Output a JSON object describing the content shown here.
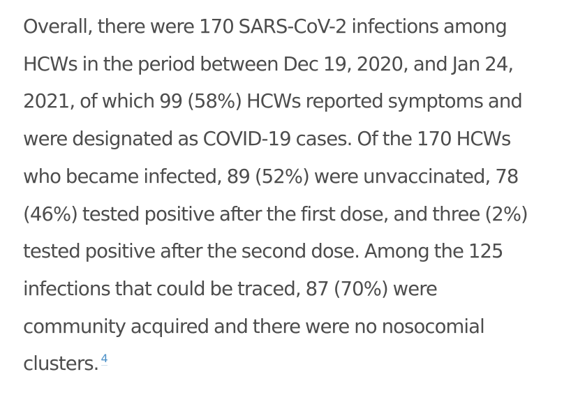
{
  "paragraph": {
    "lines": [
      "Overall, there were 170 SARS-CoV-2 infections among",
      "HCWs in the period between Dec 19, 2020, and Jan 24,",
      "2021, of which 99 (58%) HCWs reported symptoms and",
      "were designated as COVID-19 cases. Of the 170 HCWs",
      "who became infected, 89 (52%) were unvaccinated, 78",
      "(46%) tested positive after the first dose, and three (2%)",
      "tested positive after the second dose. Among the 125",
      "infections that could be traced, 87 (70%) were",
      "community acquired and there were no nosocomial",
      "clusters."
    ],
    "reference_number": "4"
  },
  "colors": {
    "text": "#4d4d4d",
    "link": "#4a8fc7",
    "background": "#ffffff"
  }
}
